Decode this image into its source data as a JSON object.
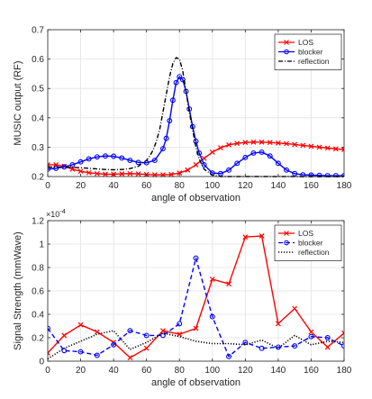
{
  "chart_data": [
    {
      "type": "line",
      "xlabel": "angle of observation",
      "ylabel": "MUSIC output (RF)",
      "xlim": [
        0,
        180
      ],
      "ylim": [
        0.2,
        0.7
      ],
      "xticks": [
        0,
        20,
        40,
        60,
        80,
        100,
        120,
        140,
        160,
        180
      ],
      "yticks": [
        0.2,
        0.3,
        0.4,
        0.5,
        0.6,
        0.7
      ],
      "ytick_labels": [
        "0.2",
        "0.3",
        "0.4",
        "0.5",
        "0.6",
        "0.7"
      ],
      "grid": true,
      "legend_position": "top-right",
      "legend": [
        "LOS",
        "blocker",
        "reflection"
      ],
      "series": [
        {
          "name": "LOS",
          "color": "#ff0000",
          "line": "solid",
          "marker": "x",
          "x": [
            0,
            5,
            10,
            15,
            20,
            25,
            30,
            35,
            40,
            45,
            50,
            55,
            60,
            65,
            70,
            75,
            80,
            85,
            90,
            95,
            100,
            105,
            110,
            115,
            120,
            125,
            130,
            135,
            140,
            145,
            150,
            155,
            160,
            165,
            170,
            175,
            180
          ],
          "y": [
            0.24,
            0.24,
            0.235,
            0.225,
            0.218,
            0.213,
            0.21,
            0.208,
            0.208,
            0.209,
            0.21,
            0.209,
            0.207,
            0.206,
            0.206,
            0.207,
            0.212,
            0.222,
            0.24,
            0.262,
            0.283,
            0.298,
            0.308,
            0.313,
            0.316,
            0.317,
            0.317,
            0.316,
            0.314,
            0.312,
            0.309,
            0.306,
            0.303,
            0.3,
            0.297,
            0.294,
            0.292
          ]
        },
        {
          "name": "blocker",
          "color": "#0000ff",
          "line": "solid",
          "marker": "o",
          "x": [
            0,
            5,
            10,
            15,
            20,
            25,
            30,
            35,
            40,
            45,
            50,
            55,
            60,
            65,
            70,
            72,
            74,
            76,
            78,
            80,
            82,
            84,
            86,
            88,
            90,
            92,
            95,
            100,
            105,
            110,
            115,
            120,
            125,
            130,
            135,
            140,
            145,
            150,
            155,
            160,
            165,
            170,
            175,
            180
          ],
          "y": [
            0.225,
            0.228,
            0.233,
            0.24,
            0.25,
            0.26,
            0.267,
            0.27,
            0.269,
            0.263,
            0.255,
            0.248,
            0.247,
            0.255,
            0.295,
            0.33,
            0.39,
            0.46,
            0.52,
            0.54,
            0.53,
            0.49,
            0.43,
            0.37,
            0.32,
            0.28,
            0.24,
            0.212,
            0.21,
            0.222,
            0.245,
            0.265,
            0.28,
            0.283,
            0.27,
            0.245,
            0.222,
            0.21,
            0.206,
            0.205,
            0.204,
            0.203,
            0.203,
            0.203
          ]
        },
        {
          "name": "reflection",
          "color": "#000000",
          "line": "dashdot",
          "marker": "none",
          "x": [
            0,
            5,
            10,
            15,
            20,
            25,
            30,
            35,
            40,
            45,
            50,
            55,
            60,
            62,
            64,
            66,
            68,
            70,
            72,
            74,
            76,
            78,
            80,
            82,
            84,
            86,
            88,
            90,
            92,
            95,
            100,
            105,
            110,
            115,
            120,
            130,
            140,
            150,
            160,
            170,
            180
          ],
          "y": [
            0.232,
            0.232,
            0.232,
            0.231,
            0.23,
            0.228,
            0.226,
            0.224,
            0.223,
            0.224,
            0.227,
            0.235,
            0.255,
            0.27,
            0.29,
            0.32,
            0.36,
            0.42,
            0.48,
            0.54,
            0.585,
            0.605,
            0.6,
            0.56,
            0.49,
            0.42,
            0.36,
            0.3,
            0.26,
            0.225,
            0.205,
            0.2,
            0.2,
            0.2,
            0.2,
            0.2,
            0.2,
            0.2,
            0.2,
            0.2,
            0.2
          ]
        }
      ]
    },
    {
      "type": "line",
      "xlabel": "angle of observation",
      "ylabel": "Signal Strength (mmWave)",
      "xlim": [
        0,
        180
      ],
      "ylim": [
        0,
        0.00012
      ],
      "axis_exponent": "×10",
      "axis_exponent_power": "-4",
      "xticks": [
        0,
        20,
        40,
        60,
        80,
        100,
        120,
        140,
        160,
        180
      ],
      "yticks": [
        0,
        2e-05,
        4e-05,
        6e-05,
        8e-05,
        0.0001,
        0.00012
      ],
      "ytick_labels": [
        "0",
        "0.2",
        "0.4",
        "0.6",
        "0.8",
        "1",
        "1.2"
      ],
      "grid": true,
      "legend_position": "top-right",
      "legend": [
        "LOS",
        "blocker",
        "reflection"
      ],
      "series": [
        {
          "name": "LOS",
          "color": "#ff0000",
          "line": "solid",
          "marker": "x",
          "x": [
            0,
            10,
            20,
            30,
            40,
            50,
            60,
            70,
            80,
            90,
            100,
            110,
            120,
            130,
            140,
            150,
            160,
            170,
            180
          ],
          "y": [
            7e-06,
            2.2e-05,
            3.1e-05,
            2.5e-05,
            1.6e-05,
            3e-06,
            1.1e-05,
            2.6e-05,
            2.3e-05,
            2.8e-05,
            7e-05,
            6.6e-05,
            0.000106,
            0.000107,
            3.2e-05,
            4.5e-05,
            2.5e-05,
            1.2e-05,
            2.4e-05
          ]
        },
        {
          "name": "blocker",
          "color": "#0000ff",
          "line": "dashed",
          "marker": "o",
          "x": [
            0,
            10,
            20,
            30,
            40,
            50,
            60,
            70,
            80,
            90,
            100,
            110,
            120,
            130,
            140,
            150,
            160,
            170,
            180
          ],
          "y": [
            2.8e-05,
            9e-06,
            8e-06,
            5e-06,
            1.4e-05,
            2.6e-05,
            2.2e-05,
            2.2e-05,
            3.2e-05,
            8.8e-05,
            3.8e-05,
            4e-06,
            1.6e-05,
            1.1e-05,
            1.2e-05,
            1.3e-05,
            2.1e-05,
            2e-05,
            1.3e-05
          ]
        },
        {
          "name": "reflection",
          "color": "#000000",
          "line": "dotted",
          "marker": "none",
          "x": [
            0,
            10,
            20,
            30,
            40,
            50,
            60,
            70,
            80,
            90,
            100,
            110,
            120,
            130,
            140,
            150,
            160,
            170,
            180
          ],
          "y": [
            2e-06,
            1.1e-05,
            1.7e-05,
            2.3e-05,
            2.6e-05,
            1e-05,
            1.6e-05,
            2.4e-05,
            2.1e-05,
            1.7e-05,
            1.5e-05,
            1.5e-05,
            1.4e-05,
            1.8e-05,
            1.1e-05,
            2.2e-05,
            1.4e-05,
            1.7e-05,
            1.6e-05
          ]
        }
      ]
    }
  ]
}
